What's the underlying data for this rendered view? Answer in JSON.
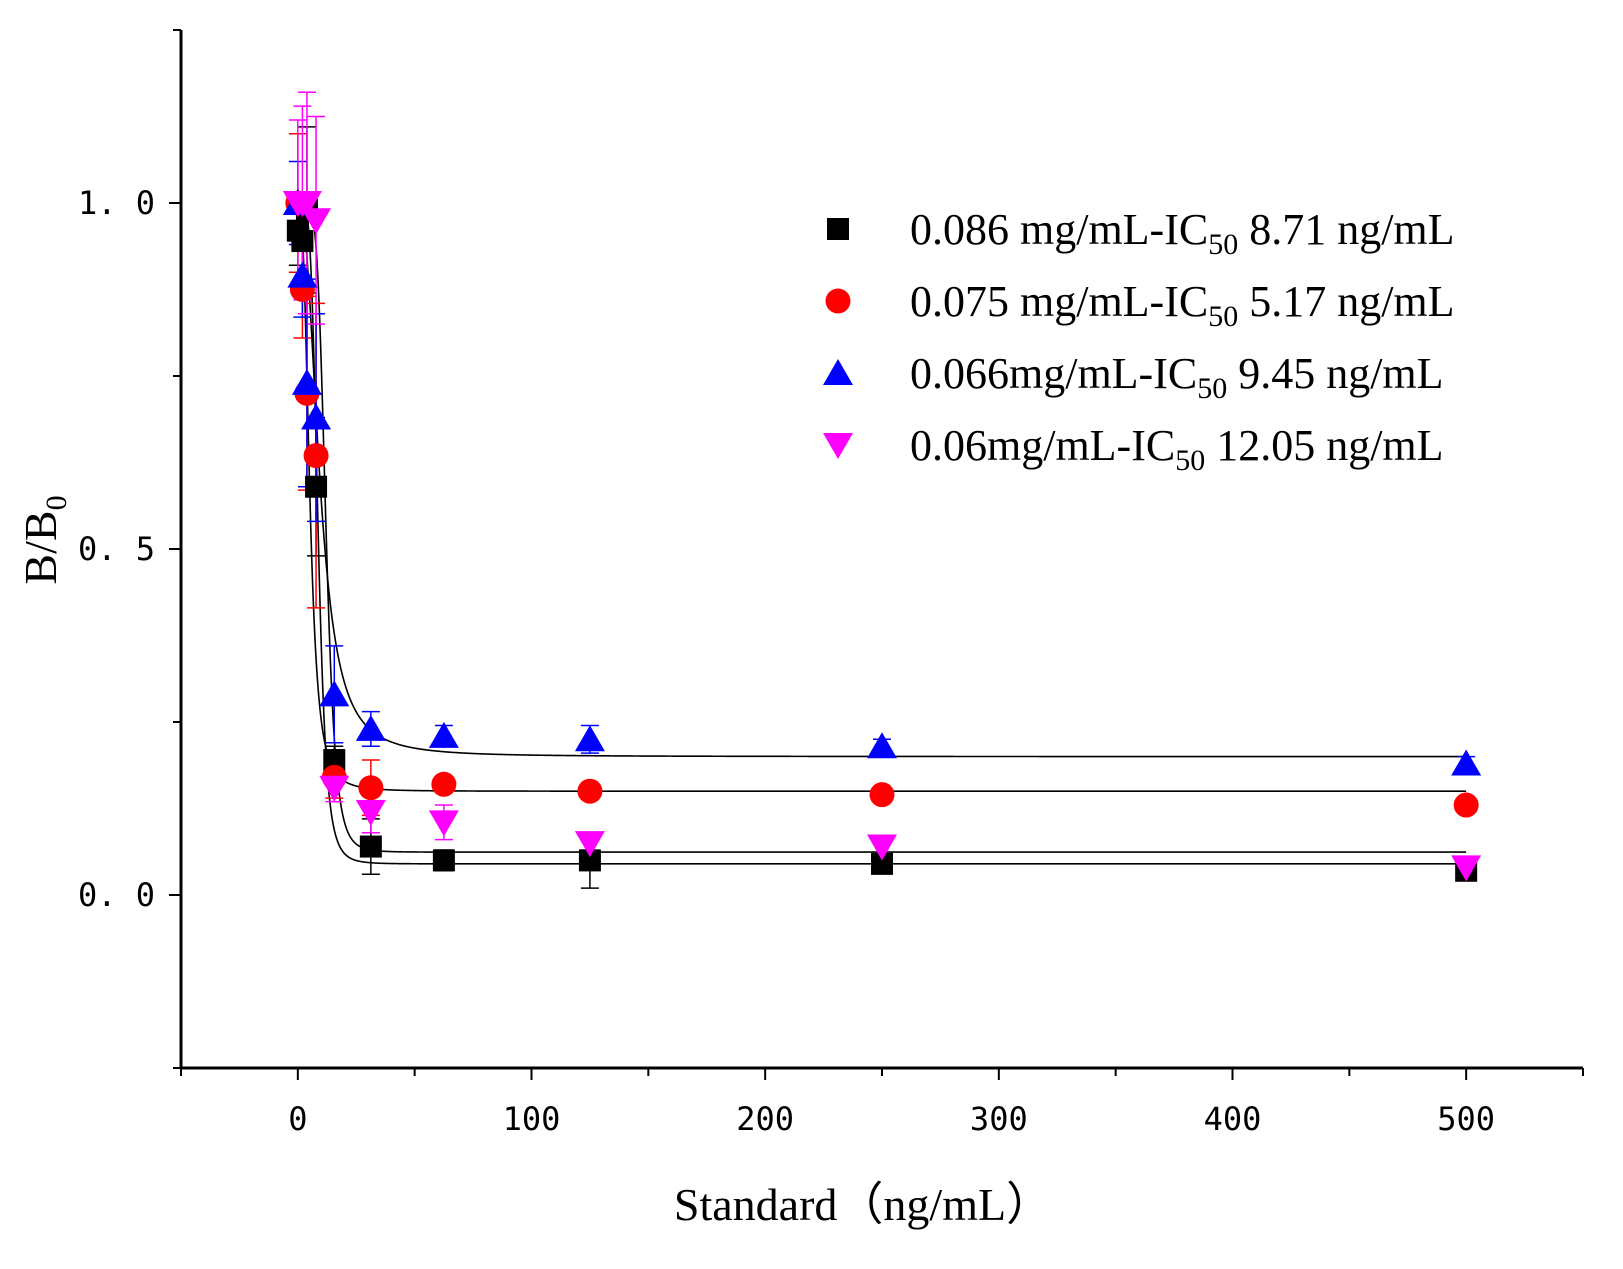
{
  "chart_data": {
    "type": "scatter",
    "xlabel": "Standard（ng/mL）",
    "ylabel": "B/B",
    "ylabel_sub": "0",
    "xlim": [
      -50,
      550
    ],
    "ylim": [
      -0.25,
      1.25
    ],
    "x_ticks": [
      0,
      100,
      200,
      300,
      400,
      500
    ],
    "x_tick_labels": [
      "0",
      "100",
      "200",
      "300",
      "400",
      "500"
    ],
    "y_ticks": [
      0.0,
      0.5,
      1.0
    ],
    "y_tick_labels": [
      "0. 0",
      "0. 5",
      "1. 0"
    ],
    "x": [
      0,
      1.95,
      3.9,
      7.8,
      15.6,
      31.25,
      62.5,
      125,
      250,
      500
    ],
    "series": [
      {
        "name": "0.086 mg/mL-IC50 8.71 ng/mL",
        "legend_pre": "0.086 mg/mL-IC",
        "legend_sub": "50",
        "legend_post": " 8.71 ng/mL",
        "marker": "square",
        "color": "#000000",
        "values": [
          0.96,
          0.945,
          0.99,
          0.59,
          0.195,
          0.07,
          0.05,
          0.05,
          0.045,
          0.035
        ],
        "errors": [
          0.05,
          0.06,
          0.12,
          0.1,
          0.02,
          0.04,
          0.015,
          0.04,
          0.01,
          0.01
        ],
        "fit": {
          "top": 1.0,
          "bottom": 0.045,
          "ic50": 8.71,
          "hill": 5
        }
      },
      {
        "name": "0.075 mg/mL-IC50 5.17 ng/mL",
        "legend_pre": "0.075 mg/mL-IC",
        "legend_sub": "50",
        "legend_post": " 5.17 ng/mL",
        "marker": "circle",
        "color": "#ff0000",
        "values": [
          1.0,
          0.875,
          0.725,
          0.635,
          0.17,
          0.155,
          0.16,
          0.15,
          0.145,
          0.13
        ],
        "errors": [
          0.1,
          0.07,
          0.14,
          0.22,
          0.03,
          0.04,
          0.01,
          0.01,
          0.01,
          0.01
        ],
        "fit": {
          "top": 1.0,
          "bottom": 0.15,
          "ic50": 5.17,
          "hill": 3
        }
      },
      {
        "name": "0.066mg/mL-IC50 9.45 ng/mL",
        "legend_pre": "0.066mg/mL-IC",
        "legend_sub": "50",
        "legend_post": " 9.45 ng/mL",
        "marker": "triangle-up",
        "color": "#0000ff",
        "values": [
          1.0,
          0.895,
          0.74,
          0.69,
          0.29,
          0.24,
          0.23,
          0.225,
          0.215,
          0.19
        ],
        "errors": [
          0.06,
          0.06,
          0.15,
          0.15,
          0.07,
          0.025,
          0.015,
          0.02,
          0.01,
          0.01
        ],
        "fit": {
          "top": 1.0,
          "bottom": 0.2,
          "ic50": 9.45,
          "hill": 2.5
        }
      },
      {
        "name": "0.06mg/mL-IC50 12.05 ng/mL",
        "legend_pre": "0.06mg/mL-IC",
        "legend_sub": "50",
        "legend_post": " 12.05 ng/mL",
        "marker": "triangle-down",
        "color": "#ff00ff",
        "values": [
          1.0,
          1.0,
          1.0,
          0.975,
          0.155,
          0.12,
          0.105,
          0.075,
          0.07,
          0.04
        ],
        "errors": [
          0.12,
          0.14,
          0.16,
          0.15,
          0.02,
          0.03,
          0.025,
          0.01,
          0.01,
          0.01
        ],
        "fit": {
          "top": 1.0,
          "bottom": 0.062,
          "ic50": 12.05,
          "hill": 6
        }
      }
    ],
    "legend_position": "top-right",
    "grid": false
  }
}
